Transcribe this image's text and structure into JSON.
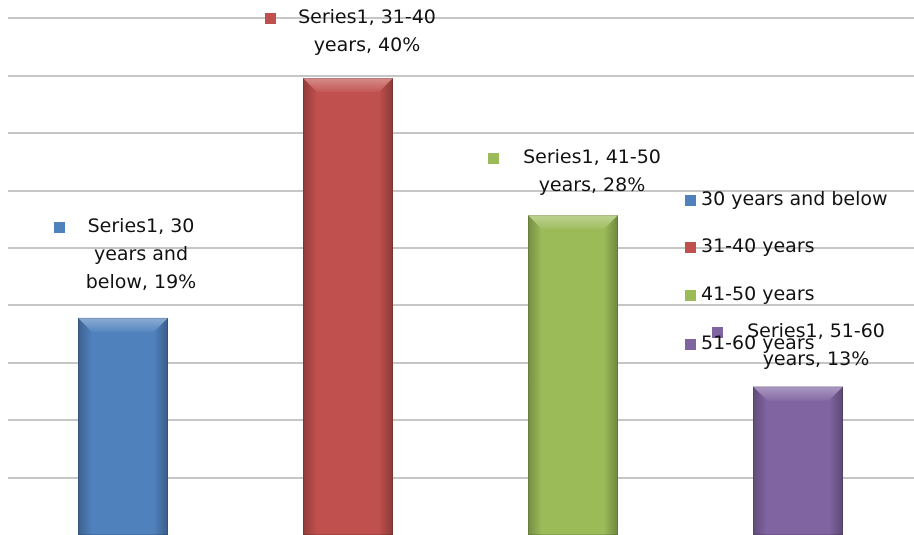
{
  "chart_data": {
    "type": "bar",
    "categories": [
      "30 years and below",
      "31-40 years",
      "41-50 years",
      "51-60 years"
    ],
    "series": [
      {
        "name": "Series1",
        "values": [
          19,
          40,
          28,
          13
        ]
      }
    ],
    "value_format": "percent",
    "ylim": [
      0,
      45
    ],
    "grid": true,
    "colors": [
      "#4f81bd",
      "#c0504d",
      "#9bbb59",
      "#8064a2"
    ],
    "data_labels": [
      "Series1, 30 years and below, 19%",
      "Series1, 31-40 years, 40%",
      "Series1, 41-50 years, 28%",
      "Series1, 51-60 years, 13%"
    ],
    "legend": {
      "position": "right",
      "entries": [
        "30 years and below",
        "31-40 years",
        "41-50 years",
        "51-60 years"
      ]
    }
  }
}
